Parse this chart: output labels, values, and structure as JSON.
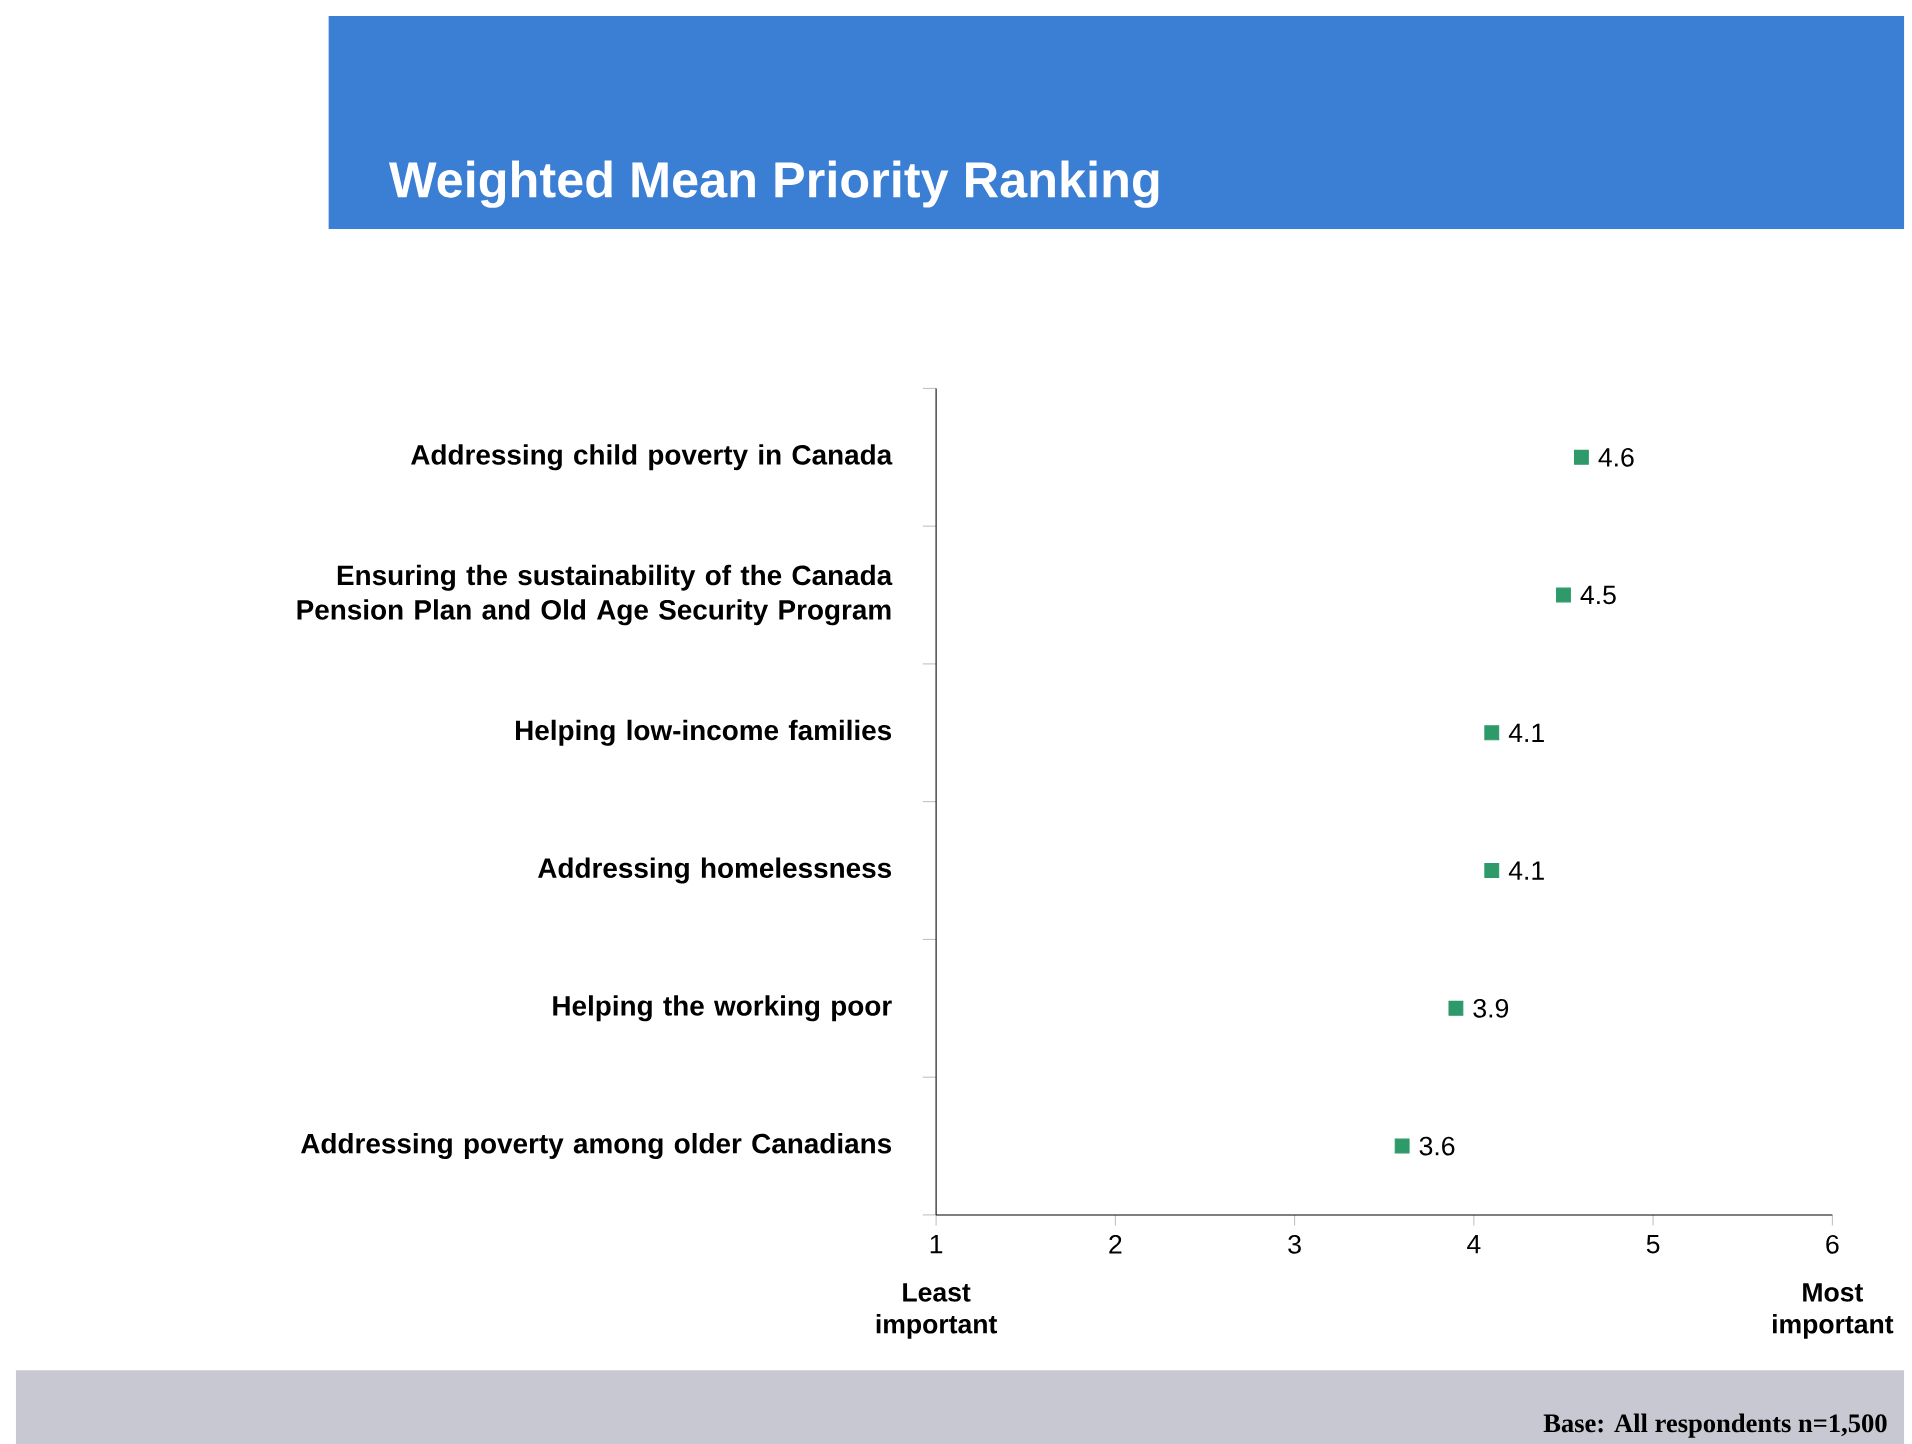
{
  "chart_data": {
    "type": "scatter",
    "orientation": "horizontal",
    "title": "Weighted Mean Priority Ranking",
    "categories": [
      "Addressing child poverty in Canada",
      "Ensuring the sustainability of the Canada Pension Plan and Old Age Security Program",
      "Helping low-income families",
      "Addressing homelessness",
      "Helping the working poor",
      "Addressing poverty among older Canadians"
    ],
    "values": [
      4.6,
      4.5,
      4.1,
      4.1,
      3.9,
      3.6
    ],
    "color": "#2e9a6a",
    "marker": "square",
    "data_labels": true,
    "xlim": [
      1,
      6
    ],
    "xticks": [
      1,
      2,
      3,
      4,
      5,
      6
    ],
    "annotations": [
      "Least important",
      "Most important",
      "Base: All respondents n=1,500"
    ]
  }
}
